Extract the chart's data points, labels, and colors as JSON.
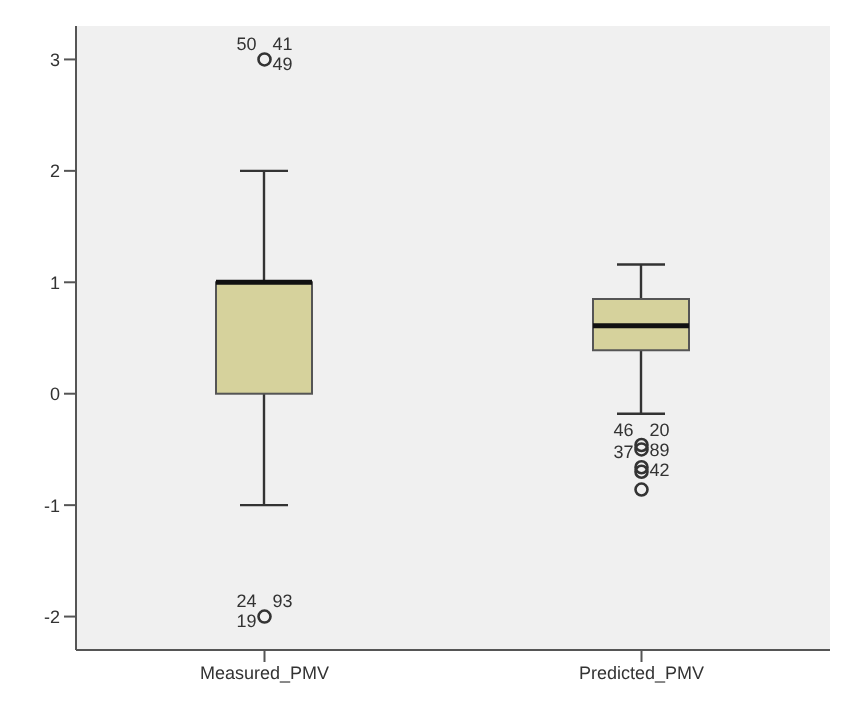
{
  "chart_data": {
    "type": "box",
    "categories": [
      "Measured_PMV",
      "Predicted_PMV"
    ],
    "color": "#d6d29c",
    "boxes": [
      {
        "low": -1,
        "q1": 0,
        "median": 1,
        "q3": 1,
        "high": 2
      },
      {
        "low": -0.18,
        "q1": 0.39,
        "median": 0.61,
        "q3": 0.85,
        "high": 1.16
      }
    ],
    "series": [
      {
        "type": "scatter",
        "color": "#333333",
        "x": [
          "Measured_PMV",
          "Measured_PMV",
          "Predicted_PMV",
          "Predicted_PMV",
          "Predicted_PMV",
          "Predicted_PMV",
          "Predicted_PMV"
        ],
        "values": [
          3,
          -2,
          -0.46,
          -0.5,
          -0.66,
          -0.7,
          -0.86
        ]
      }
    ],
    "ylim": [
      -2.3,
      3.3
    ],
    "yticks": [
      -2,
      -1,
      0,
      1,
      2,
      3
    ],
    "grid": false,
    "legend": false,
    "marker": "circle",
    "annotations": [
      {
        "text": "41",
        "x": "Measured_PMV",
        "y": 3
      },
      {
        "text": "50",
        "x": "Measured_PMV",
        "y": 3
      },
      {
        "text": "49",
        "x": "Measured_PMV",
        "y": 3
      },
      {
        "text": "24",
        "x": "Measured_PMV",
        "y": -2
      },
      {
        "text": "93",
        "x": "Measured_PMV",
        "y": -2
      },
      {
        "text": "19",
        "x": "Measured_PMV",
        "y": -2
      },
      {
        "text": "20",
        "x": "Predicted_PMV",
        "y": -0.46
      },
      {
        "text": "46",
        "x": "Predicted_PMV",
        "y": -0.46
      },
      {
        "text": "89",
        "x": "Predicted_PMV",
        "y": -0.5
      },
      {
        "text": "37",
        "x": "Predicted_PMV",
        "y": -0.66
      },
      {
        "text": "42",
        "x": "Predicted_PMV",
        "y": -0.7
      }
    ]
  }
}
